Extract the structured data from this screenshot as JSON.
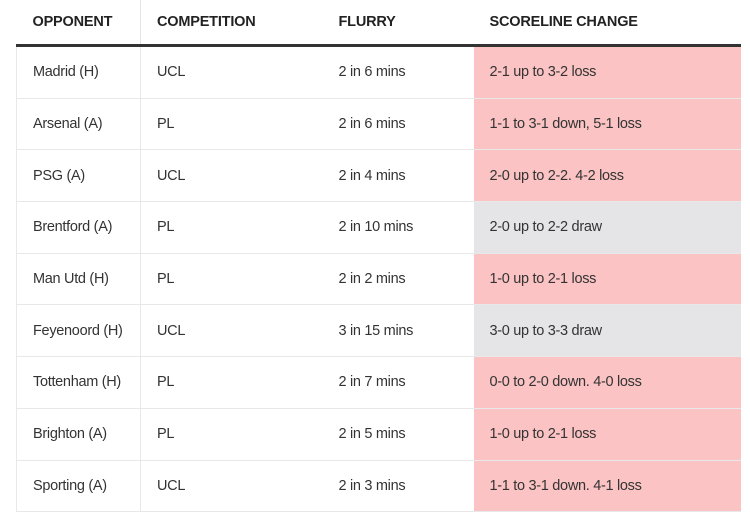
{
  "headers": [
    "OPPONENT",
    "COMPETITION",
    "FLURRY",
    "SCORELINE CHANGE"
  ],
  "colors": {
    "loss": "#fbc3c3",
    "draw": "#e5e5e7"
  },
  "rows": [
    {
      "opponent": "Madrid (H)",
      "competition": "UCL",
      "flurry": "2 in 6 mins",
      "scoreline": "2-1 up to 3-2 loss",
      "result": "loss"
    },
    {
      "opponent": "Arsenal (A)",
      "competition": "PL",
      "flurry": "2 in 6 mins",
      "scoreline": "1-1 to 3-1 down, 5-1 loss",
      "result": "loss"
    },
    {
      "opponent": "PSG (A)",
      "competition": "UCL",
      "flurry": "2 in 4 mins",
      "scoreline": "2-0 up to 2-2. 4-2 loss",
      "result": "loss"
    },
    {
      "opponent": "Brentford (A)",
      "competition": "PL",
      "flurry": "2 in 10 mins",
      "scoreline": "2-0 up to 2-2 draw",
      "result": "draw"
    },
    {
      "opponent": "Man Utd (H)",
      "competition": "PL",
      "flurry": "2 in 2 mins",
      "scoreline": "1-0 up to 2-1 loss",
      "result": "loss"
    },
    {
      "opponent": "Feyenoord (H)",
      "competition": "UCL",
      "flurry": "3 in 15 mins",
      "scoreline": "3-0 up to 3-3 draw",
      "result": "draw"
    },
    {
      "opponent": "Tottenham (H)",
      "competition": "PL",
      "flurry": "2 in 7 mins",
      "scoreline": "0-0 to 2-0 down. 4-0 loss",
      "result": "loss"
    },
    {
      "opponent": "Brighton (A)",
      "competition": "PL",
      "flurry": "2 in 5 mins",
      "scoreline": "1-0 up to 2-1 loss",
      "result": "loss"
    },
    {
      "opponent": "Sporting (A)",
      "competition": "UCL",
      "flurry": "2 in 3 mins",
      "scoreline": "1-1 to 3-1 down. 4-1 loss",
      "result": "loss"
    }
  ]
}
